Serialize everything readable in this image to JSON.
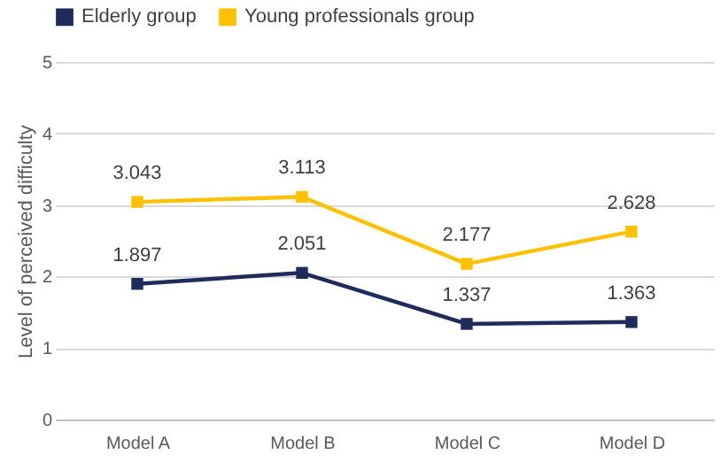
{
  "chart_data": {
    "type": "line",
    "ylabel": "Level of perceived difficulty",
    "categories": [
      "Model A",
      "Model B",
      "Model C",
      "Model D"
    ],
    "series": [
      {
        "name": "Elderly group",
        "color": "#1f2b5c",
        "values": [
          1.897,
          2.051,
          1.337,
          1.363
        ]
      },
      {
        "name": "Young professionals group",
        "color": "#ffc000",
        "values": [
          3.043,
          3.113,
          2.177,
          2.628
        ]
      }
    ],
    "ylim": [
      0,
      5
    ],
    "yticks": [
      0,
      1,
      2,
      3,
      4,
      5
    ],
    "grid": "y",
    "legend": "top",
    "marker": "square",
    "line_style": "solid",
    "data_labels": true
  }
}
